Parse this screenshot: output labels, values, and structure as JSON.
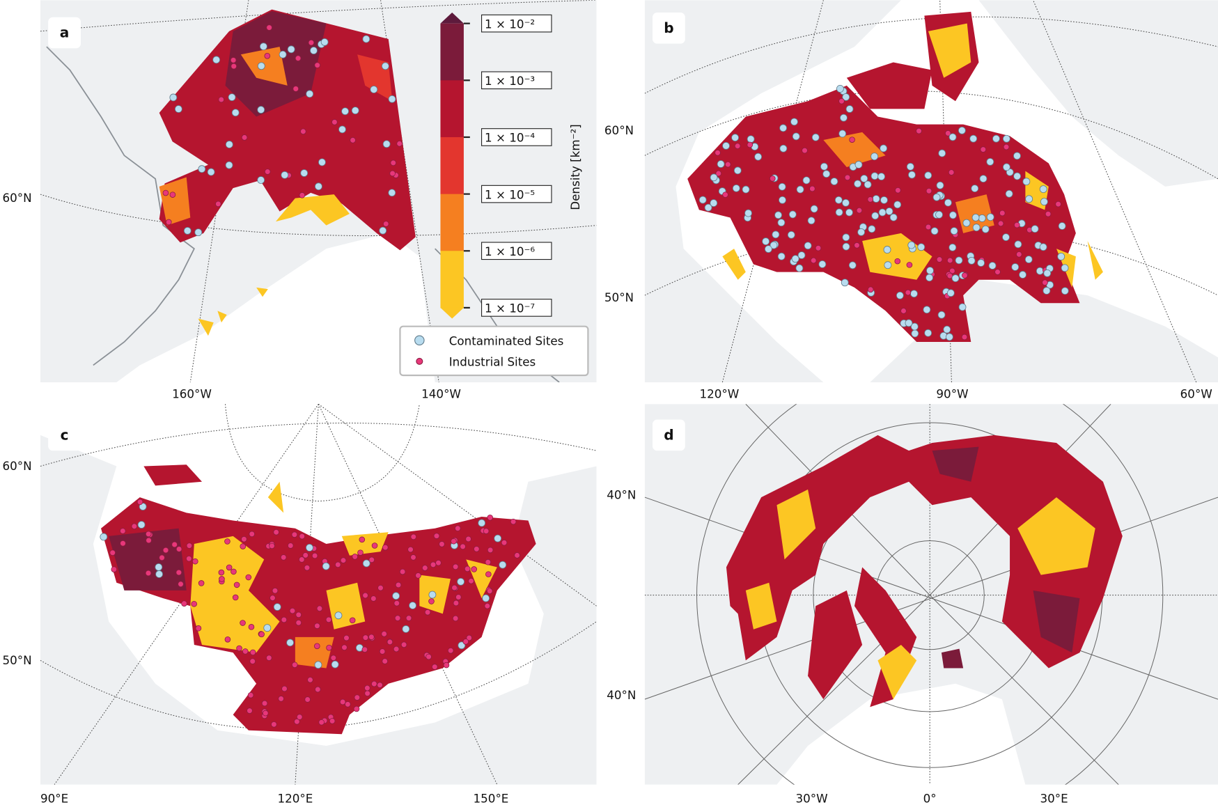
{
  "panels": [
    {
      "label": "a",
      "lat_labels": [
        "60°N"
      ],
      "lon_labels": [
        "160°W",
        "140°W"
      ]
    },
    {
      "label": "b",
      "lat_labels": [
        "60°N",
        "50°N"
      ],
      "lon_labels": [
        "120°W",
        "90°W",
        "60°W"
      ]
    },
    {
      "label": "c",
      "lat_labels": [
        "60°N",
        "50°N"
      ],
      "lon_labels": [
        "90°E",
        "120°E",
        "150°E"
      ]
    },
    {
      "label": "d",
      "lat_labels": [
        "40°N",
        "40°N"
      ],
      "lon_labels": [
        "30°W",
        "0°",
        "30°E"
      ]
    }
  ],
  "colorbar": {
    "label": "Density [km⁻²]",
    "ticks": [
      {
        "value": 0.01,
        "label": "1 × 10⁻²"
      },
      {
        "value": 0.001,
        "label": "1 × 10⁻³"
      },
      {
        "value": 0.0001,
        "label": "1 × 10⁻⁴"
      },
      {
        "value": 1e-05,
        "label": "1 × 10⁻⁵"
      },
      {
        "value": 1e-06,
        "label": "1 × 10⁻⁶"
      },
      {
        "value": 1e-07,
        "label": "1 × 10⁻⁷"
      }
    ],
    "colors": [
      "#5e1a3c",
      "#7b1b3a",
      "#b5152f",
      "#e3362e",
      "#f57f20",
      "#fcc623",
      "#fcc623"
    ]
  },
  "legend": [
    {
      "name": "Contaminated Sites",
      "color": "#b8dcef"
    },
    {
      "name": "Industrial Sites",
      "color": "#e8377a"
    }
  ]
}
